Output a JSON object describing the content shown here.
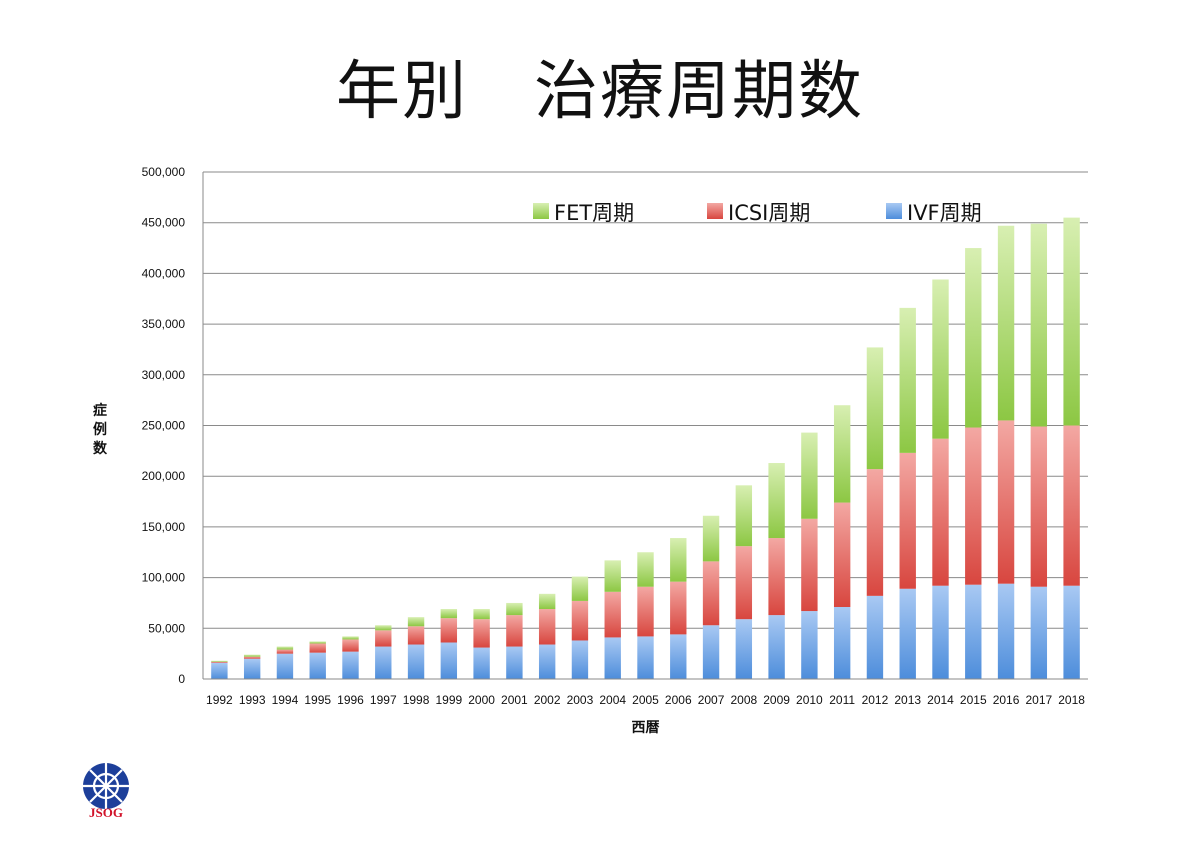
{
  "page": {
    "title": "年別　治療周期数"
  },
  "logo": {
    "text": "JSOG"
  },
  "chart_data": {
    "type": "bar",
    "stacked": true,
    "title": "年別　治療周期数",
    "xlabel": "西暦",
    "ylabel": "症例数",
    "ylim": [
      0,
      500000
    ],
    "yticks": [
      "0",
      "50,000",
      "100,000",
      "150,000",
      "200,000",
      "250,000",
      "300,000",
      "350,000",
      "400,000",
      "450,000",
      "500,000"
    ],
    "grid": true,
    "legend_position": "top-right",
    "categories": [
      "1992",
      "1993",
      "1994",
      "1995",
      "1996",
      "1997",
      "1998",
      "1999",
      "2000",
      "2001",
      "2002",
      "2003",
      "2004",
      "2005",
      "2006",
      "2007",
      "2008",
      "2009",
      "2010",
      "2011",
      "2012",
      "2013",
      "2014",
      "2015",
      "2016",
      "2017",
      "2018"
    ],
    "series": [
      {
        "name": "IVF周期",
        "color": "#5f9de0",
        "values": [
          16000,
          20000,
          25000,
          26000,
          27000,
          32000,
          34000,
          36000,
          31000,
          32000,
          34000,
          38000,
          41000,
          42000,
          44000,
          53000,
          59000,
          63000,
          67000,
          71000,
          82000,
          89000,
          92000,
          93000,
          94000,
          91000,
          92000
        ]
      },
      {
        "name": "ICSI周期",
        "color": "#e0605a",
        "values": [
          1000,
          2000,
          4000,
          9000,
          12000,
          16000,
          18000,
          24000,
          28000,
          31000,
          35000,
          39000,
          45000,
          49000,
          52000,
          63000,
          72000,
          76000,
          91000,
          103000,
          125000,
          134000,
          145000,
          155000,
          161000,
          158000,
          158000
        ]
      },
      {
        "name": "FET周期",
        "color": "#9fd35a",
        "values": [
          1000,
          2000,
          3000,
          2000,
          3000,
          5000,
          9000,
          9000,
          10000,
          12000,
          15000,
          24000,
          31000,
          34000,
          43000,
          45000,
          60000,
          74000,
          85000,
          96000,
          120000,
          143000,
          157000,
          177000,
          192000,
          200000,
          205000
        ]
      }
    ]
  }
}
